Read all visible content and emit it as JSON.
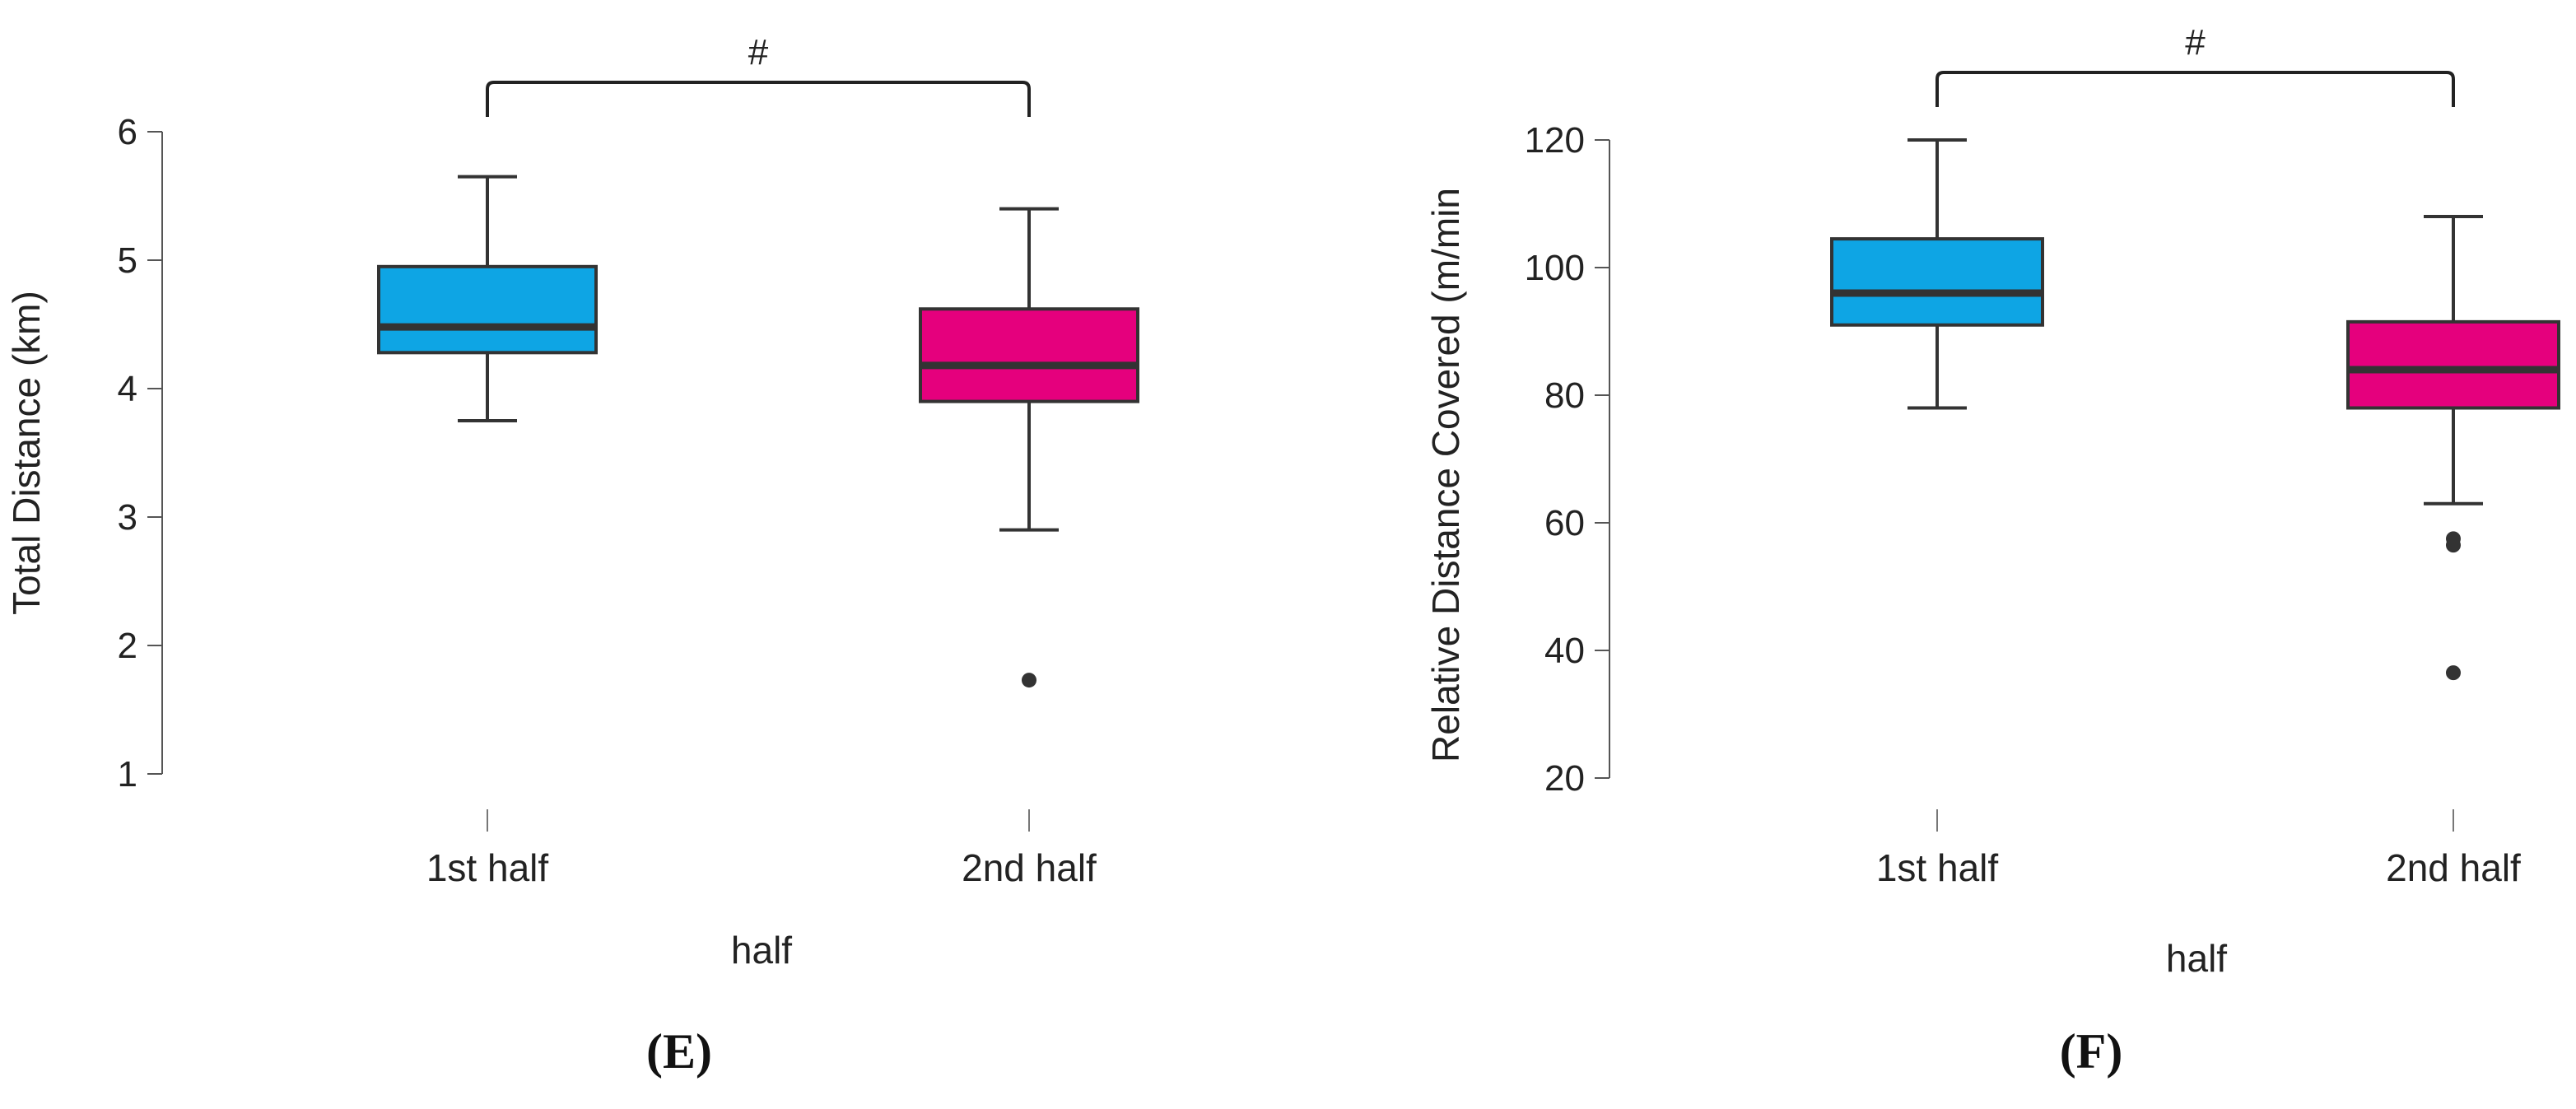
{
  "colors": {
    "first_half": "#0ea5e4",
    "second_half": "#e5007d",
    "stroke": "#333333",
    "axis": "#555555"
  },
  "chart_data": [
    {
      "type": "box",
      "panel_label": "(E)",
      "xlabel": "half",
      "ylabel": "Total Distance (km)",
      "ylim": [
        1,
        6
      ],
      "yticks": [
        1,
        2,
        3,
        4,
        5,
        6
      ],
      "categories": [
        "1st half",
        "2nd half"
      ],
      "boxes": [
        {
          "category": "1st half",
          "whisker_low": 3.75,
          "q1": 4.28,
          "median": 4.48,
          "q3": 4.95,
          "whisker_high": 5.65,
          "outliers": []
        },
        {
          "category": "2nd half",
          "whisker_low": 2.9,
          "q1": 3.9,
          "median": 4.18,
          "q3": 4.62,
          "whisker_high": 5.4,
          "outliers": [
            1.73
          ]
        }
      ],
      "significance": {
        "from": "1st half",
        "to": "2nd half",
        "label": "#"
      },
      "grid": false
    },
    {
      "type": "box",
      "panel_label": "(F)",
      "xlabel": "half",
      "ylabel": "Relative Distance Covered (m/min",
      "ylim": [
        20,
        120
      ],
      "yticks": [
        20,
        40,
        60,
        80,
        100,
        120
      ],
      "categories": [
        "1st half",
        "2nd half"
      ],
      "boxes": [
        {
          "category": "1st half",
          "whisker_low": 78,
          "q1": 91,
          "median": 96,
          "q3": 104.5,
          "whisker_high": 120,
          "outliers": []
        },
        {
          "category": "2nd half",
          "whisker_low": 63,
          "q1": 78,
          "median": 84,
          "q3": 91.5,
          "whisker_high": 108,
          "outliers": [
            57.5,
            56.5,
            36.5
          ]
        }
      ],
      "significance": {
        "from": "1st half",
        "to": "2nd half",
        "label": "#"
      },
      "grid": false
    }
  ]
}
